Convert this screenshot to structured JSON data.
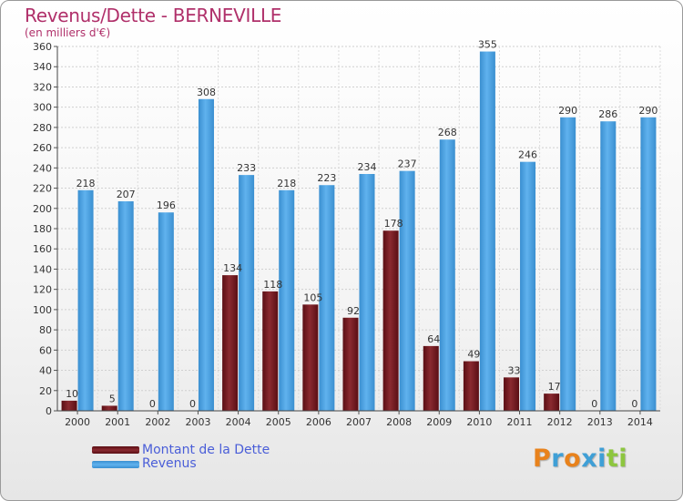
{
  "title": "Revenus/Dette - BERNEVILLE",
  "subtitle": "(en milliers d'€)",
  "colors": {
    "debt": "#7a1e24",
    "revenue": "#4ea3e2",
    "title": "#b0306a",
    "legend_text": "#4a5ed8"
  },
  "chart_data": {
    "type": "bar",
    "categories": [
      "2000",
      "2001",
      "2002",
      "2003",
      "2004",
      "2005",
      "2006",
      "2007",
      "2008",
      "2009",
      "2010",
      "2011",
      "2012",
      "2013",
      "2014"
    ],
    "series": [
      {
        "name": "Montant de la Dette",
        "values": [
          10,
          5,
          0,
          0,
          134,
          118,
          105,
          92,
          178,
          64,
          49,
          33,
          17,
          0,
          0
        ]
      },
      {
        "name": "Revenus",
        "values": [
          218,
          207,
          196,
          308,
          233,
          218,
          223,
          234,
          237,
          268,
          355,
          246,
          290,
          286,
          290
        ]
      }
    ],
    "ylim": [
      0,
      360
    ],
    "yticks": [
      0,
      20,
      40,
      60,
      80,
      100,
      120,
      140,
      160,
      180,
      200,
      220,
      240,
      260,
      280,
      300,
      320,
      340,
      360
    ],
    "grid": true,
    "legend": "bottom-left"
  },
  "logo": {
    "letters": [
      "P",
      "r",
      "o",
      "x",
      "i",
      "t",
      "i"
    ],
    "colors": [
      "#e8821c",
      "#3f9fd6",
      "#e8821c",
      "#3f9fd6",
      "#3f9fd6",
      "#8dc63f",
      "#8dc63f"
    ]
  }
}
